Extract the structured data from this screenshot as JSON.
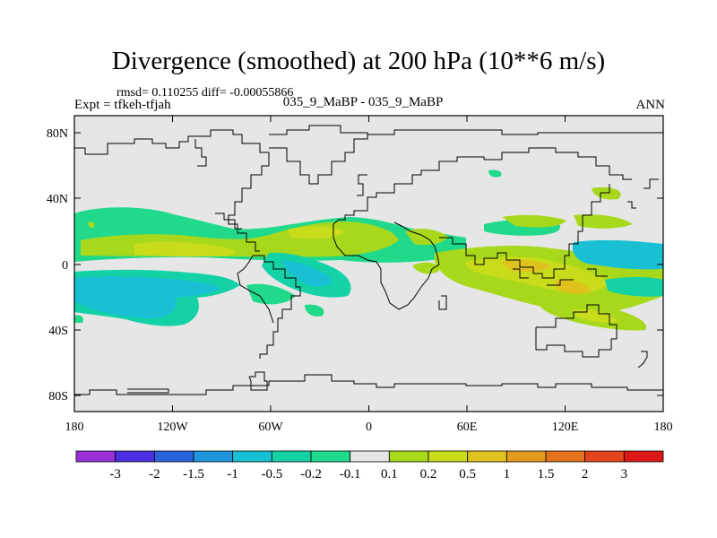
{
  "title": "Divergence (smoothed) at 200 hPa (10**6 m/s)",
  "stats": "rmsd= 0.110255 diff= -0.00055866",
  "expt": "Expt = tfkeh-tfjah",
  "cases": "035_9_MaBP - 035_9_MaBP",
  "season": "ANN",
  "lat_ticks": [
    "80N",
    "40N",
    "0",
    "40S",
    "80S"
  ],
  "lon_ticks": [
    "180",
    "120W",
    "60W",
    "0",
    "60E",
    "120E",
    "180"
  ],
  "colorbar": {
    "labels": [
      "-3",
      "-2",
      "-1.5",
      "-1",
      "-0.5",
      "-0.2",
      "-0.1",
      "0.1",
      "0.2",
      "0.5",
      "1",
      "1.5",
      "2",
      "3"
    ],
    "colors": [
      "#9a2fd7",
      "#4b2fe0",
      "#2a63d9",
      "#1f95dc",
      "#19c0d4",
      "#14d2a6",
      "#20d98a",
      "#e6e6e6",
      "#a8d81c",
      "#c9dc1c",
      "#dfc21d",
      "#e49a1c",
      "#e4711c",
      "#e2451b",
      "#dd1818"
    ]
  },
  "map_colors": {
    "background": "#e6e6e6",
    "cyan": "#19c0d4",
    "teal": "#14d2a6",
    "green": "#20d98a",
    "lime": "#a8d81c",
    "yellowgreen": "#c9dc1c",
    "gold": "#dfc21d"
  }
}
